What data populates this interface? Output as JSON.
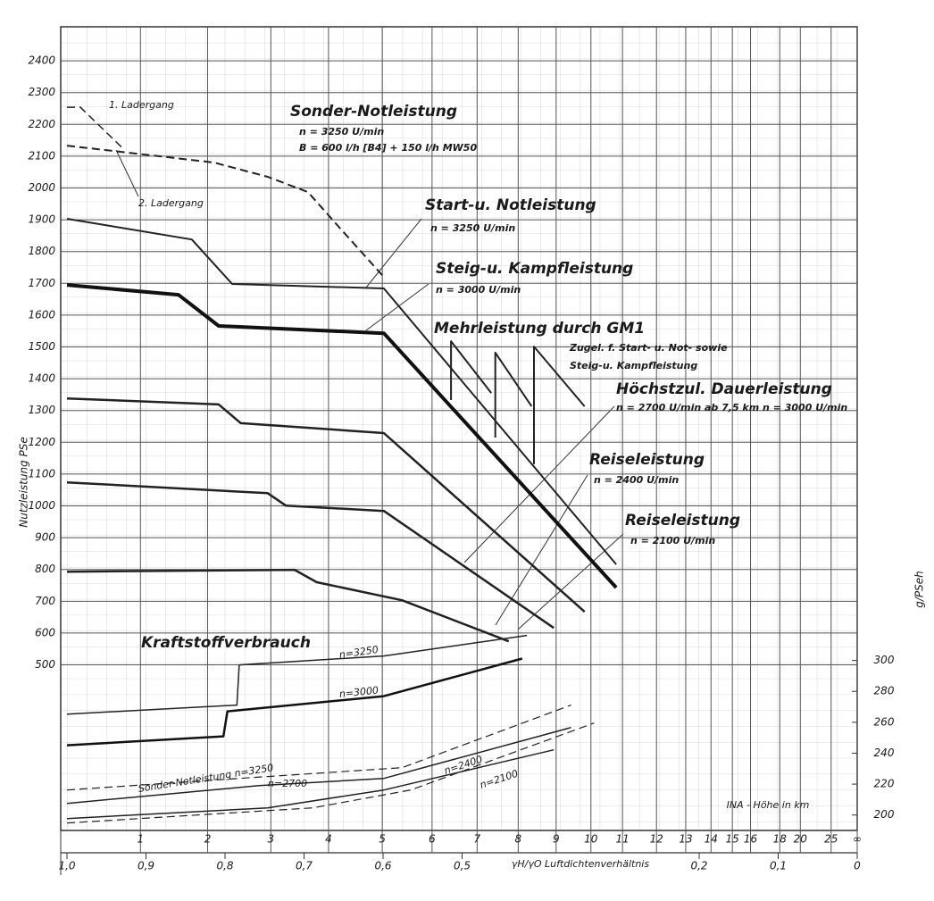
{
  "chart_data": {
    "type": "line",
    "y_label": "Nutzleistung  PSe",
    "y2_label": "g/PSeh",
    "x_label": "γH/γO  Luftdichtenverhältnis",
    "x2_label": "INA - Höhe in km",
    "xlim": [
      1.0,
      0
    ],
    "ylim": [
      -21,
      2507
    ],
    "y2lim": [
      190,
      710
    ],
    "grid": true,
    "xticks": [
      {
        "value": 1.0,
        "label": "1,0"
      },
      {
        "value": 0.9,
        "label": "0,9"
      },
      {
        "value": 0.8,
        "label": "0,8"
      },
      {
        "value": 0.7,
        "label": "0,7"
      },
      {
        "value": 0.6,
        "label": "0,6"
      },
      {
        "value": 0.5,
        "label": "0,5"
      },
      {
        "value": 0.2,
        "label": "0,2"
      },
      {
        "value": 0.1,
        "label": "0,1"
      },
      0
    ],
    "x2ticks": [
      {
        "value": 0.907,
        "label": "1"
      },
      {
        "value": 0.822,
        "label": "2"
      },
      {
        "value": 0.742,
        "label": "3"
      },
      {
        "value": 0.669,
        "label": "4"
      },
      {
        "value": 0.601,
        "label": "5"
      },
      {
        "value": 0.538,
        "label": "6"
      },
      {
        "value": 0.481,
        "label": "7"
      },
      {
        "value": 0.429,
        "label": "8"
      },
      {
        "value": 0.381,
        "label": "9"
      },
      {
        "value": 0.337,
        "label": "10"
      },
      {
        "value": 0.297,
        "label": "11"
      },
      {
        "value": 0.254,
        "label": "12"
      },
      {
        "value": 0.217,
        "label": "13"
      },
      {
        "value": 0.185,
        "label": "14"
      },
      {
        "value": 0.158,
        "label": "15"
      },
      {
        "value": 0.135,
        "label": "16"
      },
      {
        "value": 0.098,
        "label": "18"
      },
      {
        "value": 0.072,
        "label": "20"
      },
      {
        "value": 0.033,
        "label": "25"
      },
      {
        "value": 0,
        "label": "∞"
      }
    ],
    "yticks": [
      500,
      600,
      700,
      800,
      900,
      1000,
      1100,
      1200,
      1300,
      1400,
      1500,
      1600,
      1700,
      1800,
      1900,
      2000,
      2100,
      2200,
      2300,
      2400
    ],
    "y2ticks": [
      200,
      220,
      240,
      260,
      280,
      300
    ],
    "series": [
      {
        "name": "Sonder-Notleistung",
        "notes": [
          "n = 3250 U/min",
          "B = 600 l/h [B4] + 150 l/h MW50"
        ],
        "color": "#222",
        "style": "dashed",
        "width": 2,
        "x": [
          1.0,
          0.814,
          0.746,
          0.695,
          0.655,
          0.599
        ],
        "values": [
          2133,
          2080,
          2035,
          1987,
          1875,
          1720
        ]
      },
      {
        "name": "1. Ladergang",
        "color": "#222",
        "style": "dashed",
        "width": 1.5,
        "x": [
          1.0,
          0.983,
          0.927
        ],
        "values": [
          2254,
          2254,
          2119
        ]
      },
      {
        "name": "Start-u. Notleistung",
        "notes": [
          "n = 3250 U/min"
        ],
        "color": "#222",
        "style": "solid",
        "width": 2,
        "x": [
          1.0,
          0.842,
          0.791,
          0.599,
          0.305
        ],
        "values": [
          1903,
          1838,
          1698,
          1684,
          816
        ]
      },
      {
        "name": "Steig-u. Kampfleistung",
        "notes": [
          "n = 3000 U/min"
        ],
        "color": "#111",
        "style": "solid",
        "width": 4,
        "x": [
          1.0,
          0.859,
          0.808,
          0.599,
          0.305
        ],
        "values": [
          1695,
          1664,
          1566,
          1543,
          743
        ]
      },
      {
        "name": "Höchstzul. Dauerleistung",
        "notes": [
          "n = 2700 U/min  ab 7,5 km  n = 3000 U/min"
        ],
        "color": "#222",
        "style": "solid",
        "width": 2.5,
        "x": [
          1.0,
          0.808,
          0.78,
          0.599,
          0.345
        ],
        "values": [
          1338,
          1319,
          1260,
          1229,
          667
        ]
      },
      {
        "name": "Reiseleistung",
        "notes": [
          "n = 2400 U/min"
        ],
        "color": "#222",
        "style": "solid",
        "width": 2.5,
        "x": [
          1.0,
          0.746,
          0.723,
          0.599,
          0.384
        ],
        "values": [
          1074,
          1040,
          1001,
          984,
          616
        ]
      },
      {
        "name": "Reiseleistung",
        "notes": [
          "n = 2100 U/min"
        ],
        "color": "#222",
        "style": "solid",
        "width": 2.5,
        "x": [
          1.0,
          0.712,
          0.684,
          0.576,
          0.441
        ],
        "values": [
          793,
          799,
          760,
          703,
          574
        ]
      },
      {
        "name": "Mehrleistung durch GM1",
        "color": "#222",
        "style": "solid",
        "width": 2,
        "x": [
          0.514,
          0.514,
          0.463,
          null,
          0.458,
          0.458,
          0.412,
          null,
          0.409,
          0.409,
          0.345
        ],
        "values": [
          1333,
          1518,
          1355,
          null,
          1215,
          1482,
          1313,
          null,
          1131,
          1501,
          1313
        ]
      },
      {
        "name": "n=3250",
        "axis": "y2",
        "color": "#222",
        "style": "solid",
        "width": 1.5,
        "x": [
          1.0,
          0.785,
          0.782,
          0.599,
          0.418
        ],
        "values": [
          265.3,
          271.1,
          297.1,
          302.9,
          316.2
        ]
      },
      {
        "name": "n=3000",
        "axis": "y2",
        "color": "#111",
        "style": "solid",
        "width": 2.5,
        "x": [
          1.0,
          0.802,
          0.797,
          0.599,
          0.424
        ],
        "values": [
          245.1,
          250.9,
          267.1,
          276.9,
          301.2
        ]
      },
      {
        "name": "Sonder-Notleistung n=3250",
        "axis": "y2",
        "color": "#222",
        "style": "dashed",
        "width": 1.2,
        "x": [
          1.0,
          0.746,
          0.576,
          0.362
        ],
        "values": [
          216.2,
          224.9,
          230.6,
          271.1
        ]
      },
      {
        "name": "n=2700",
        "axis": "y2",
        "color": "#222",
        "style": "solid",
        "width": 1.5,
        "x": [
          1.0,
          0.757,
          0.599,
          0.362
        ],
        "values": [
          207.5,
          219,
          223.7,
          256.6
        ]
      },
      {
        "name": "n=2400",
        "axis": "y2",
        "color": "#222",
        "style": "solid",
        "width": 1.5,
        "x": [
          1.0,
          0.746,
          0.599,
          0.384
        ],
        "values": [
          197.7,
          204.6,
          216.2,
          242.2
        ]
      },
      {
        "name": "n=2100",
        "axis": "y2",
        "color": "#222",
        "style": "dashed",
        "width": 1.2,
        "x": [
          1.0,
          0.689,
          0.565,
          0.333
        ],
        "values": [
          194.8,
          204.6,
          216.2,
          259.5
        ]
      }
    ],
    "annotations": [
      "2. Ladergang",
      "Zugel. f. Start- u. Not- sowie",
      "Steig-u. Kampfleistung",
      "Kraftstoffverbrauch"
    ]
  }
}
